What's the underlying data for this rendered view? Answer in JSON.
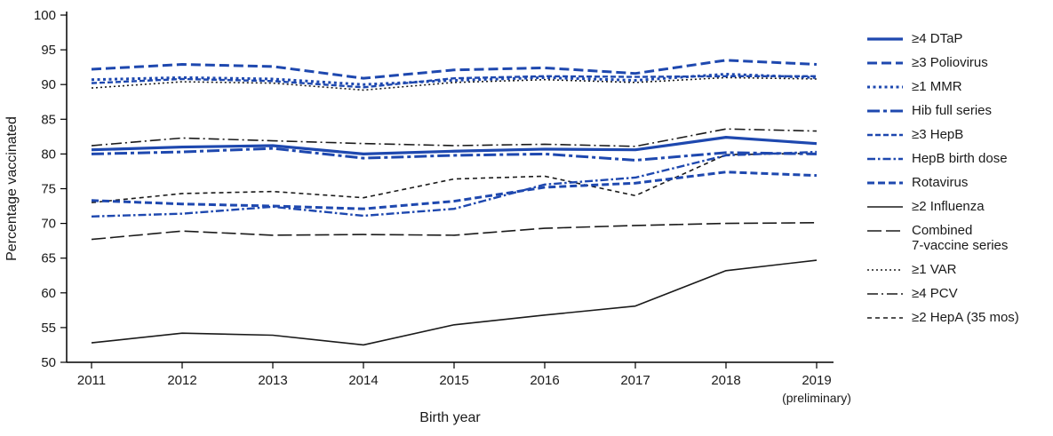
{
  "chart_data": {
    "type": "line",
    "xlabel": "Birth year",
    "ylabel": "Percentage vaccinated",
    "x_categories": [
      "2011",
      "2012",
      "2013",
      "2014",
      "2015",
      "2016",
      "2017",
      "2018",
      "2019"
    ],
    "x_last_category_note": "(preliminary)",
    "ylim": [
      50,
      100
    ],
    "ytick_step": 5,
    "grid": false,
    "legend_position": "right",
    "colors": {
      "blue": "#1e48af",
      "black": "#1a1a1a"
    },
    "series": [
      {
        "name": "≥4 DTaP",
        "legend_lines": [
          "≥4 DTaP"
        ],
        "color": "blue",
        "width": 3.2,
        "dash": "",
        "values": [
          80.6,
          81.0,
          81.2,
          80.0,
          80.4,
          80.7,
          80.6,
          82.4,
          81.5
        ]
      },
      {
        "name": "≥3 Poliovirus",
        "legend_lines": [
          "≥3 Poliovirus"
        ],
        "color": "blue",
        "width": 3,
        "dash": "11 5",
        "values": [
          92.2,
          92.9,
          92.6,
          90.9,
          92.1,
          92.4,
          91.6,
          93.5,
          92.9
        ]
      },
      {
        "name": "≥1 MMR",
        "legend_lines": [
          "≥1 MMR"
        ],
        "color": "blue",
        "width": 3,
        "dash": "3 3.5",
        "values": [
          90.7,
          91.0,
          90.8,
          90.0,
          90.6,
          91.0,
          90.6,
          91.5,
          91.0
        ]
      },
      {
        "name": "Hib full series",
        "legend_lines": [
          "Hib full series"
        ],
        "color": "blue",
        "width": 3,
        "dash": "14 4 4 4",
        "values": [
          80.0,
          80.3,
          80.8,
          79.4,
          79.8,
          80.0,
          79.1,
          80.2,
          80.0
        ]
      },
      {
        "name": "≥3 HepB",
        "legend_lines": [
          "≥3 HepB"
        ],
        "color": "blue",
        "width": 2.4,
        "dash": "6 3",
        "values": [
          90.2,
          90.8,
          90.5,
          89.6,
          90.9,
          91.2,
          91.1,
          91.2,
          91.2
        ]
      },
      {
        "name": "HepB birth dose",
        "legend_lines": [
          "HepB birth dose"
        ],
        "color": "blue",
        "width": 2.4,
        "dash": "9 3 2.5 3",
        "values": [
          71.0,
          71.4,
          72.4,
          71.1,
          72.1,
          75.6,
          76.6,
          79.8,
          80.3
        ]
      },
      {
        "name": "Rotavirus",
        "legend_lines": [
          "Rotavirus"
        ],
        "color": "blue",
        "width": 3,
        "dash": "8 4",
        "values": [
          73.3,
          72.8,
          72.5,
          72.1,
          73.2,
          75.2,
          75.8,
          77.4,
          76.9
        ]
      },
      {
        "name": "≥2 Influenza",
        "legend_lines": [
          "≥2 Influenza"
        ],
        "color": "black",
        "width": 1.6,
        "dash": "",
        "values": [
          52.8,
          54.2,
          53.9,
          52.5,
          55.4,
          56.8,
          58.1,
          63.2,
          64.7
        ]
      },
      {
        "name": "Combined 7-vaccine series",
        "legend_lines": [
          "Combined",
          "7-vaccine series"
        ],
        "color": "black",
        "width": 1.6,
        "dash": "16 5",
        "values": [
          67.7,
          68.9,
          68.3,
          68.4,
          68.3,
          69.3,
          69.7,
          70.0,
          70.1
        ]
      },
      {
        "name": "≥1 VAR",
        "legend_lines": [
          "≥1 VAR"
        ],
        "color": "black",
        "width": 1.6,
        "dash": "2 3",
        "values": [
          89.5,
          90.4,
          90.2,
          89.2,
          90.3,
          90.7,
          90.3,
          91.0,
          90.8
        ]
      },
      {
        "name": "≥4 PCV",
        "legend_lines": [
          "≥4 PCV"
        ],
        "color": "black",
        "width": 1.6,
        "dash": "12 4 2 4",
        "values": [
          81.2,
          82.3,
          81.9,
          81.5,
          81.2,
          81.4,
          81.1,
          83.6,
          83.3
        ]
      },
      {
        "name": "≥2 HepA (35 mos)",
        "legend_lines": [
          "≥2 HepA (35 mos)"
        ],
        "color": "black",
        "width": 1.6,
        "dash": "5 4",
        "values": [
          73.0,
          74.3,
          74.6,
          73.7,
          76.4,
          76.8,
          74.0,
          79.9,
          80.1
        ]
      }
    ]
  }
}
